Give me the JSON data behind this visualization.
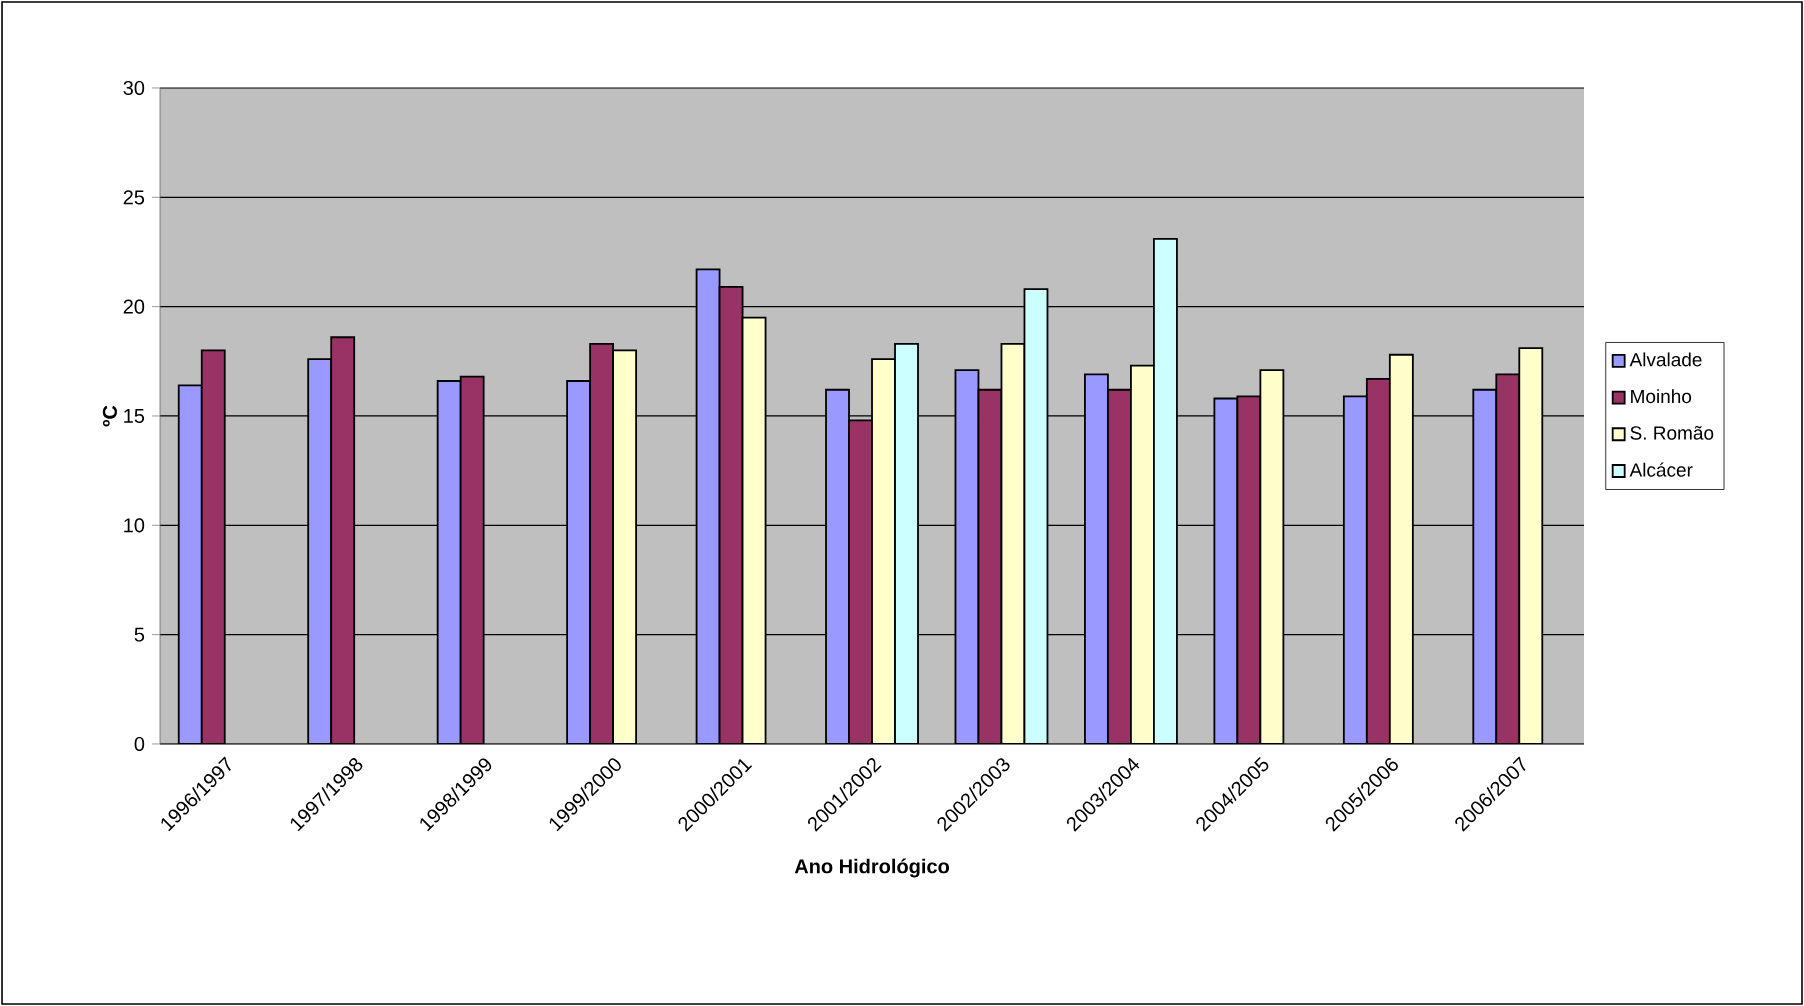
{
  "chart_data": {
    "type": "bar",
    "xlabel": "Ano Hidrológico",
    "ylabel": "ºC",
    "categories": [
      "1996/1997",
      "1997/1998",
      "1998/1999",
      "1999/2000",
      "2000/2001",
      "2001/2002",
      "2002/2003",
      "2003/2004",
      "2004/2005",
      "2005/2006",
      "2006/2007"
    ],
    "series": [
      {
        "name": "Alvalade",
        "color": "#9999ff",
        "values": [
          16.4,
          17.6,
          16.6,
          16.6,
          21.7,
          16.2,
          17.1,
          16.9,
          15.8,
          15.9,
          16.2
        ]
      },
      {
        "name": "Moinho",
        "color": "#993366",
        "values": [
          18.0,
          18.6,
          16.8,
          18.3,
          20.9,
          14.8,
          16.2,
          16.2,
          15.9,
          16.7,
          16.9
        ]
      },
      {
        "name": "S. Romão",
        "color": "#ffffcc",
        "values": [
          null,
          null,
          null,
          18.0,
          19.5,
          17.6,
          18.3,
          17.3,
          17.1,
          17.8,
          18.1
        ]
      },
      {
        "name": "Alcácer",
        "color": "#ccffff",
        "values": [
          null,
          null,
          null,
          null,
          null,
          18.3,
          20.8,
          23.1,
          null,
          null,
          null
        ]
      }
    ],
    "ylim": [
      0,
      30
    ],
    "yticks": [
      0,
      5,
      10,
      15,
      20,
      25,
      30
    ],
    "grid": "y",
    "legend": "right"
  }
}
